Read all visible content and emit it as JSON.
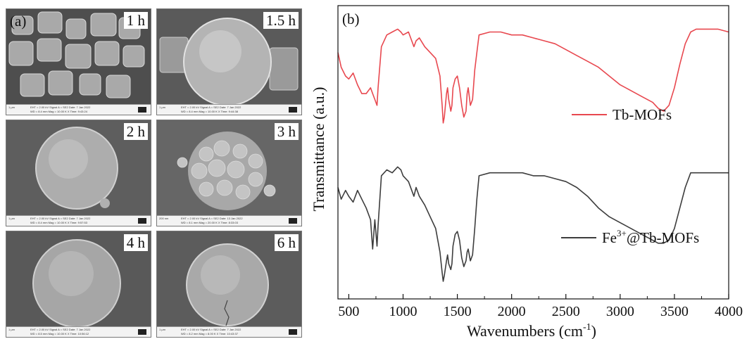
{
  "panel_a": {
    "label": "(a)",
    "images": [
      {
        "time": "1 h",
        "scale": "1 μm",
        "row1": "EHT = 2.00 kV   Signal A = SE2   Date: 7 Jan 2022",
        "row2": "WD = 8.4 mm   Mag = 10.00 K X   Time: 9:43:24"
      },
      {
        "time": "1.5 h",
        "scale": "1 μm",
        "row1": "EHT = 2.00 kV   Signal A = SE2   Date: 7 Jan 2022",
        "row2": "WD = 8.4 mm   Mag = 10.00 K X   Time: 9:44:38"
      },
      {
        "time": "2 h",
        "scale": "1 μm",
        "row1": "EHT = 2.00 kV   Signal A = SE2   Date: 7 Jan 2022",
        "row2": "WD = 8.4 mm   Mag = 10.00 K X   Time: 9:57:53"
      },
      {
        "time": "3 h",
        "scale": "200 nm",
        "row1": "EHT = 2.00 kV   Signal A = SE2   Date: 13 Jan 2022",
        "row2": "WD = 8.1 mm   Mag = 20.00 K X   Time: 8:33:03"
      },
      {
        "time": "4 h",
        "scale": "1 μm",
        "row1": "EHT = 2.00 kV   Signal A = SE2   Date: 7 Jan 2022",
        "row2": "WD = 8.5 mm   Mag = 10.00 K X   Time: 10:56:12"
      },
      {
        "time": "6 h",
        "scale": "1 μm",
        "row1": "EHT = 2.00 kV   Signal A = SE2   Date: 7 Jan 2022",
        "row2": "WD = 8.2 mm   Mag = 8.00 K X   Time: 10:43:37"
      }
    ]
  },
  "chart_data": {
    "type": "line",
    "panel_label": "(b)",
    "xlabel": "Wavenumbers (cm",
    "xlabel_sup": "-1",
    "xlabel_close": ")",
    "ylabel": "Transmittance (a.u.)",
    "xlim": [
      400,
      4000
    ],
    "xticks": [
      "500",
      "1000",
      "1500",
      "2000",
      "2500",
      "3000",
      "3500",
      "4000"
    ],
    "ylim": [
      0,
      100
    ],
    "grid": false,
    "series": [
      {
        "name": "Tb-MOFs",
        "color": "#e8484f",
        "x": [
          400,
          430,
          470,
          500,
          540,
          580,
          620,
          660,
          700,
          720,
          740,
          760,
          770,
          800,
          850,
          900,
          950,
          980,
          1000,
          1050,
          1080,
          1100,
          1120,
          1150,
          1200,
          1250,
          1300,
          1340,
          1360,
          1370,
          1380,
          1400,
          1410,
          1420,
          1440,
          1450,
          1460,
          1480,
          1500,
          1520,
          1540,
          1560,
          1580,
          1590,
          1600,
          1620,
          1640,
          1660,
          1680,
          1700,
          1800,
          1900,
          2000,
          2100,
          2200,
          2300,
          2400,
          2500,
          2600,
          2700,
          2800,
          2900,
          3000,
          3100,
          3200,
          3300,
          3350,
          3400,
          3450,
          3500,
          3550,
          3600,
          3650,
          3700,
          3800,
          3900,
          4000
        ],
        "y": [
          84,
          79,
          76,
          75,
          77,
          73,
          70,
          70,
          72,
          70,
          68,
          66,
          72,
          86,
          90,
          91,
          92,
          91,
          90,
          91,
          88,
          86,
          88,
          89,
          86,
          84,
          82,
          76,
          66,
          60,
          62,
          70,
          72,
          68,
          64,
          66,
          72,
          75,
          76,
          72,
          66,
          62,
          64,
          70,
          72,
          66,
          68,
          78,
          84,
          90,
          91,
          91,
          90,
          90,
          89,
          88,
          87,
          85,
          83,
          81,
          79,
          76,
          73,
          71,
          69,
          67,
          65,
          64,
          66,
          72,
          80,
          87,
          91,
          92,
          92,
          92,
          91
        ]
      },
      {
        "name": "Fe³⁺@Tb-MOFs",
        "name_base": "Fe",
        "name_sup": "3+",
        "name_rest": "@Tb-MOFs",
        "color": "#3d3d3d",
        "x": [
          400,
          430,
          470,
          500,
          540,
          580,
          620,
          660,
          700,
          720,
          740,
          760,
          770,
          800,
          850,
          900,
          950,
          980,
          1000,
          1050,
          1080,
          1100,
          1120,
          1150,
          1200,
          1250,
          1300,
          1340,
          1360,
          1370,
          1380,
          1400,
          1410,
          1420,
          1440,
          1450,
          1460,
          1480,
          1500,
          1520,
          1540,
          1560,
          1580,
          1590,
          1600,
          1620,
          1640,
          1660,
          1680,
          1700,
          1800,
          1900,
          2000,
          2100,
          2200,
          2300,
          2400,
          2500,
          2600,
          2700,
          2800,
          2900,
          3000,
          3100,
          3200,
          3300,
          3350,
          3400,
          3450,
          3500,
          3550,
          3600,
          3650,
          3700,
          3800,
          3900,
          4000
        ],
        "y": [
          38,
          34,
          37,
          35,
          33,
          37,
          34,
          31,
          27,
          17,
          27,
          18,
          25,
          42,
          44,
          43,
          45,
          44,
          42,
          40,
          37,
          35,
          38,
          35,
          32,
          28,
          24,
          16,
          9,
          6,
          8,
          13,
          15,
          12,
          10,
          12,
          18,
          22,
          23,
          20,
          14,
          11,
          13,
          16,
          17,
          13,
          15,
          24,
          34,
          42,
          43,
          43,
          43,
          43,
          42,
          42,
          41,
          40,
          38,
          35,
          31,
          28,
          26,
          24,
          22,
          20,
          19,
          19,
          20,
          24,
          31,
          38,
          43,
          43,
          43,
          43,
          43
        ]
      }
    ]
  }
}
